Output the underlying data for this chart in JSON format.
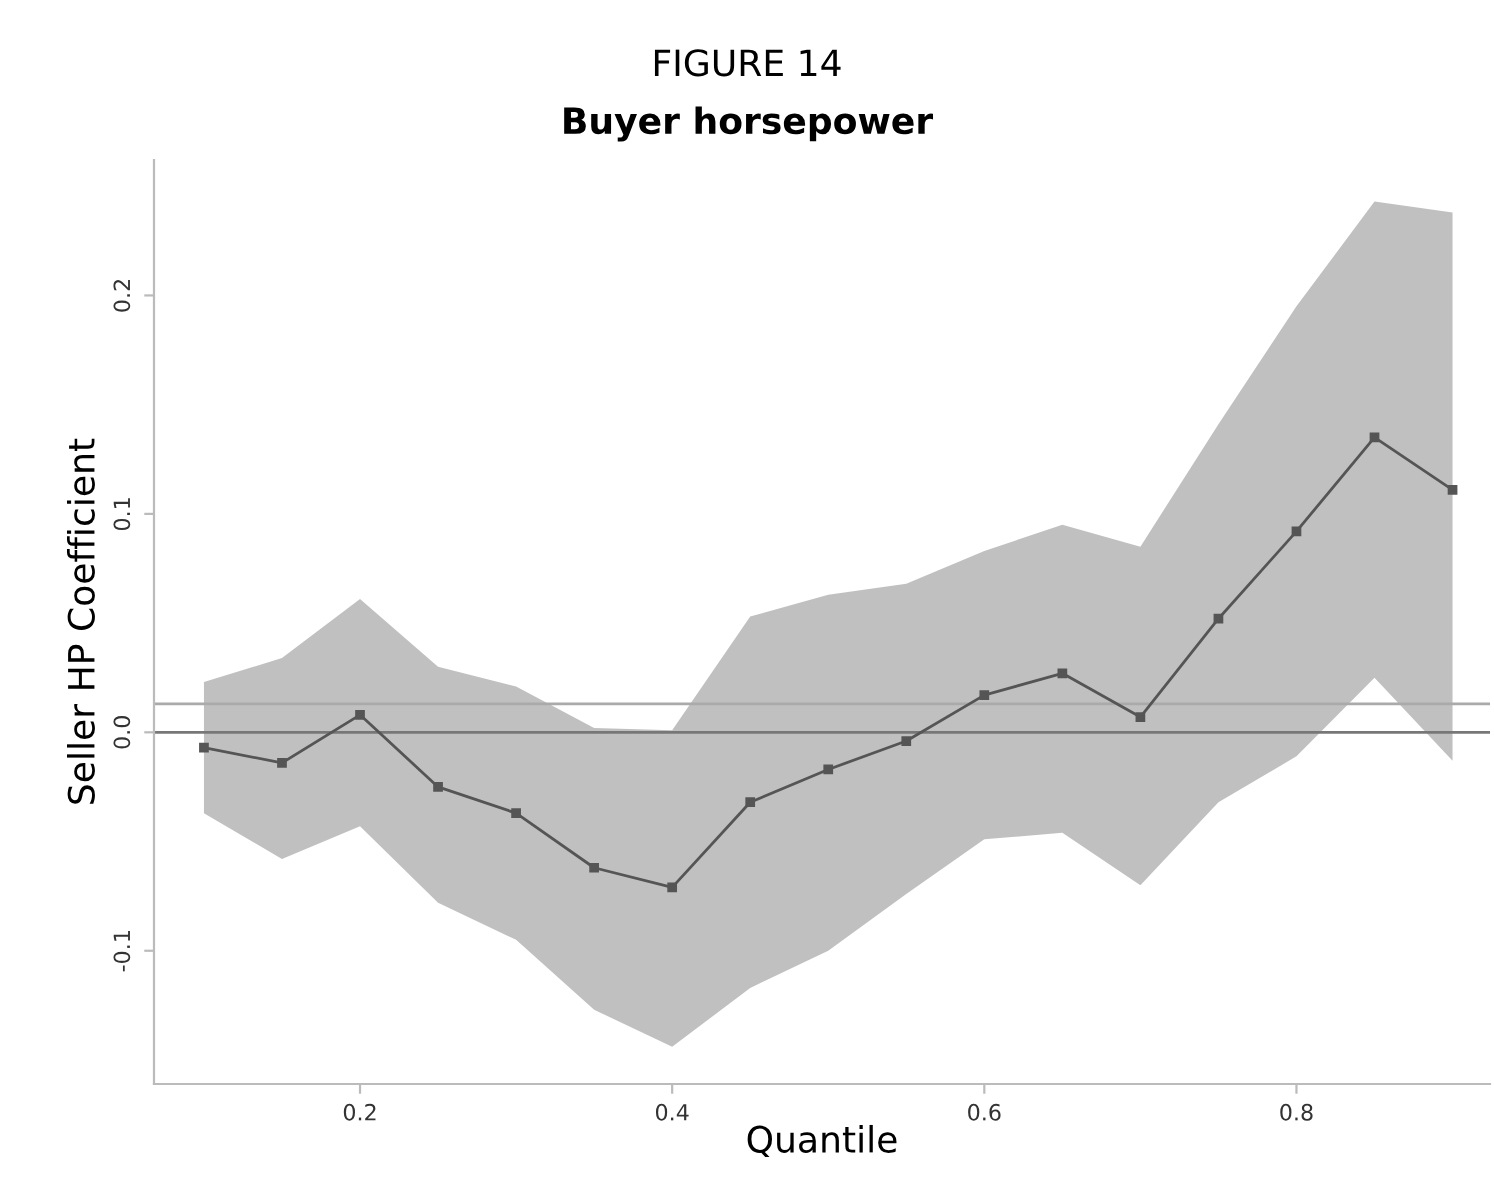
{
  "chart_data": {
    "type": "line",
    "title": "FIGURE 14",
    "subtitle": "Buyer horsepower",
    "xlabel": "Quantile",
    "ylabel": "Seller HP Coefficient",
    "x": [
      0.1,
      0.15,
      0.2,
      0.25,
      0.3,
      0.35,
      0.4,
      0.45,
      0.5,
      0.55,
      0.6,
      0.65,
      0.7,
      0.75,
      0.8,
      0.85,
      0.9
    ],
    "series": [
      {
        "color": "#555555",
        "values": [
          -0.007,
          -0.014,
          0.008,
          -0.025,
          -0.037,
          -0.062,
          -0.071,
          -0.032,
          -0.017,
          -0.004,
          0.017,
          0.027,
          0.007,
          0.052,
          0.092,
          0.135,
          0.111
        ],
        "lower": [
          -0.037,
          -0.058,
          -0.043,
          -0.078,
          -0.095,
          -0.127,
          -0.144,
          -0.117,
          -0.1,
          -0.074,
          -0.049,
          -0.046,
          -0.07,
          -0.032,
          -0.011,
          0.025,
          -0.013
        ],
        "upper": [
          0.023,
          0.034,
          0.061,
          0.03,
          0.021,
          0.002,
          0.001,
          0.053,
          0.063,
          0.068,
          0.083,
          0.095,
          0.085,
          0.141,
          0.195,
          0.243,
          0.238
        ]
      }
    ],
    "xlim": [
      0.068,
      0.924
    ],
    "ylim": [
      -0.161,
      0.262
    ],
    "xticks": [
      0.2,
      0.4,
      0.6,
      0.8
    ],
    "yticks": [
      -0.1,
      {
        "value": 0,
        "label": "0.0"
      },
      0.1,
      0.2
    ],
    "ref_lines": [
      {
        "axis": "y",
        "value": 0.0,
        "color": "#777777"
      },
      {
        "axis": "y",
        "value": 0.013,
        "color": "#aaaaaa"
      }
    ],
    "grid": false,
    "legend": false,
    "marker": "square",
    "line_style": "solid"
  }
}
